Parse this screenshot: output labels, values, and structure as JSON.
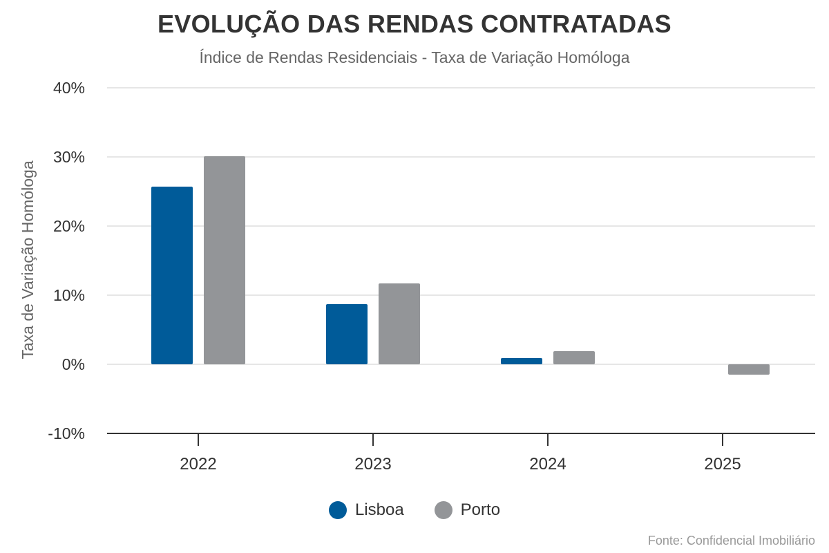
{
  "chart_data": {
    "type": "bar",
    "title": "EVOLUÇÃO DAS RENDAS CONTRATADAS",
    "subtitle": "Índice de Rendas Residenciais - Taxa de Variação Homóloga",
    "xlabel": "",
    "ylabel": "Taxa de Variação Homóloga",
    "categories": [
      "2022",
      "2023",
      "2024",
      "2025"
    ],
    "series": [
      {
        "name": "Lisboa",
        "color": "#005b99",
        "values": [
          25.7,
          8.7,
          0.9,
          null
        ]
      },
      {
        "name": "Porto",
        "color": "#939598",
        "values": [
          30.1,
          11.7,
          1.9,
          -1.5
        ]
      }
    ],
    "ylim": [
      -10,
      40
    ],
    "yticks": [
      -10,
      0,
      10,
      20,
      30,
      40
    ],
    "ytick_labels": [
      "-10%",
      "0%",
      "10%",
      "20%",
      "30%",
      "40%"
    ],
    "grid": true,
    "legend_position": "bottom-center",
    "source": "Fonte: Confidencial Imobiliário"
  }
}
